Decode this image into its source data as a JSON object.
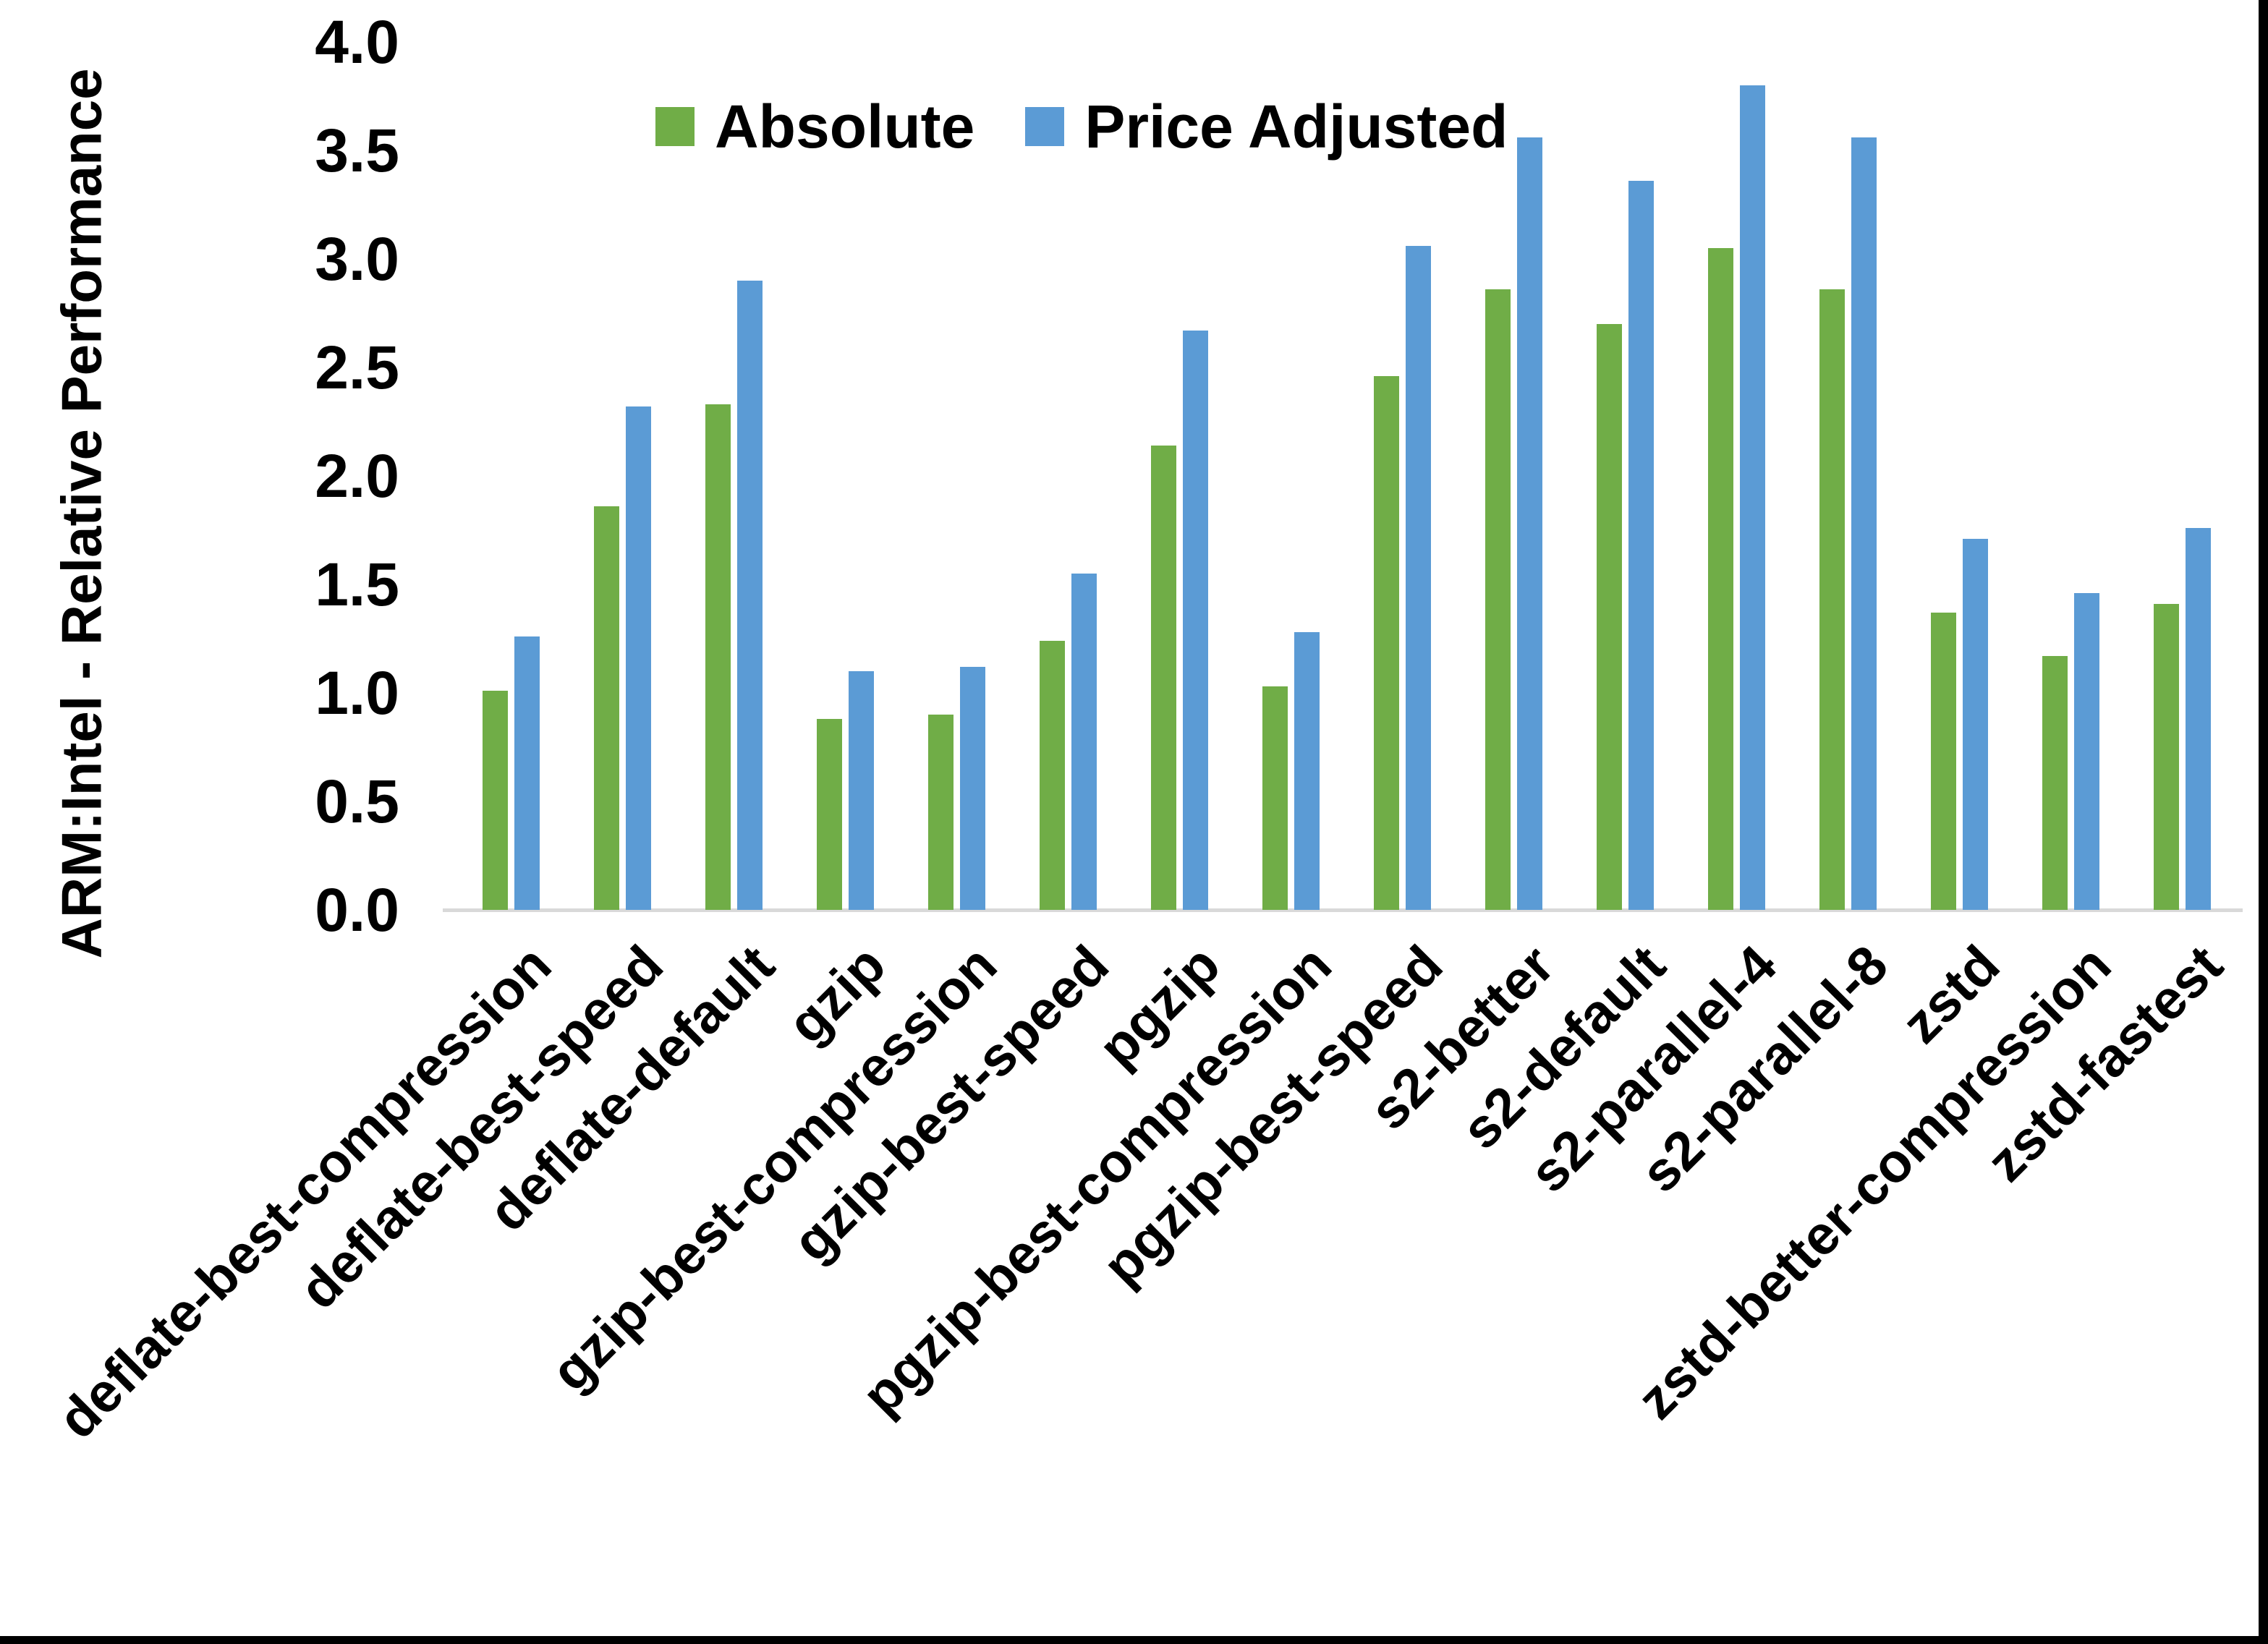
{
  "chart_data": {
    "type": "bar",
    "title": "",
    "ylabel": "ARM:Intel - Relative Performance",
    "xlabel": "",
    "ylim": [
      0.0,
      4.0
    ],
    "ytick_step": 0.5,
    "ytick_labels": [
      "0.0",
      "0.5",
      "1.0",
      "1.5",
      "2.0",
      "2.5",
      "3.0",
      "3.5",
      "4.0"
    ],
    "grid": false,
    "legend_position": "top-center",
    "categories": [
      "deflate-best-compression",
      "deflate-best-speed",
      "deflate-default",
      "gzip",
      "gzip-best-compression",
      "gzip-best-speed",
      "pgzip",
      "pgzip-best-compression",
      "pgzip-best-speed",
      "s2-better",
      "s2-default",
      "s2-parallel-4",
      "s2-parallel-8",
      "zstd",
      "zstd-better-compression",
      "zstd-fastest"
    ],
    "series": [
      {
        "name": "Absolute",
        "color": "#70AD47",
        "values": [
          1.01,
          1.86,
          2.33,
          0.88,
          0.9,
          1.24,
          2.14,
          1.03,
          2.46,
          2.86,
          2.7,
          3.05,
          2.86,
          1.37,
          1.17,
          1.41
        ]
      },
      {
        "name": "Price Adjusted",
        "color": "#5B9BD5",
        "values": [
          1.26,
          2.32,
          2.9,
          1.1,
          1.12,
          1.55,
          2.67,
          1.28,
          3.06,
          3.56,
          3.36,
          3.8,
          3.56,
          1.71,
          1.46,
          1.76
        ]
      }
    ],
    "colors": {
      "axis_line": "#D9D9D9",
      "text": "#000000",
      "background": "#FFFFFF",
      "frame_border": "#000000"
    }
  }
}
